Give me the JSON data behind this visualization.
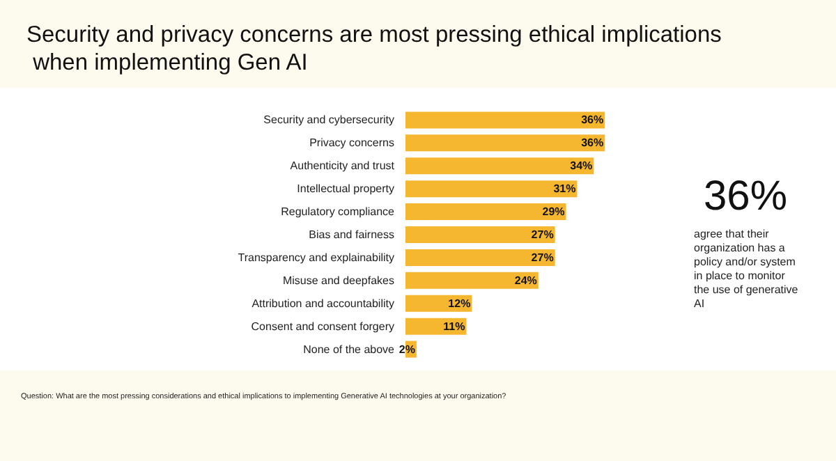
{
  "chart_data": {
    "type": "bar",
    "orientation": "horizontal",
    "title": "Security and privacy concerns are most pressing ethical implications when implementing Gen AI",
    "categories": [
      "Security and cybersecurity",
      "Privacy concerns",
      "Authenticity and trust",
      "Intellectual property",
      "Regulatory compliance",
      "Bias and fairness",
      "Transparency and explainability",
      "Misuse and deepfakes",
      "Attribution and accountability",
      "Consent and consent forgery",
      "None of the above"
    ],
    "values": [
      36,
      36,
      34,
      31,
      29,
      27,
      27,
      24,
      12,
      11,
      2
    ],
    "value_labels": [
      "36%",
      "36%",
      "34%",
      "31%",
      "29%",
      "27%",
      "27%",
      "24%",
      "12%",
      "11%",
      "2%"
    ],
    "color": "#f6b730",
    "annotations": [
      "36%",
      "agree that their organization has a policy and/or system in place to monitor the use of generative AI",
      "Question: What are the most pressing considerations and ethical implications to implementing Generative AI technologies at your organization?"
    ]
  }
}
